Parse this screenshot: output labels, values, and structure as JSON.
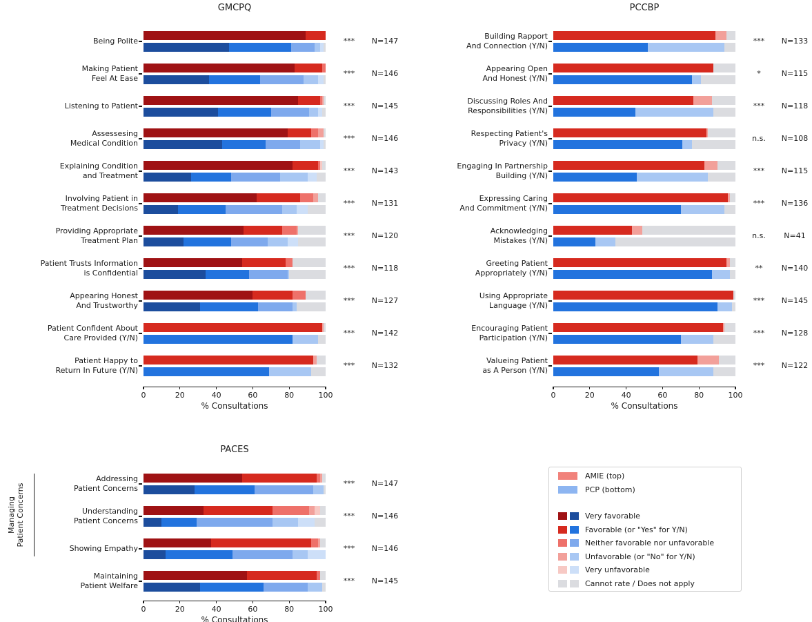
{
  "figure": {
    "xlabel": "% Consultations",
    "group_label_lines": [
      "Managing",
      "Patient Concerns"
    ],
    "segment_colors": {
      "amie": [
        "#9f1214",
        "#d62a1f",
        "#ee716a",
        "#f2a09a",
        "#f7c9c4",
        "#dbdce0"
      ],
      "pcp": [
        "#1c4d9d",
        "#2273de",
        "#7ea9ed",
        "#a8c7f3",
        "#cddff8",
        "#dbdce0"
      ]
    },
    "axis_color": "#1a1a1a"
  },
  "chart_data": [
    {
      "type": "bar",
      "orientation": "horizontal",
      "stacked": true,
      "title": "GMCPQ",
      "xlabel": "% Consultations",
      "xlim": [
        0,
        100
      ],
      "xticks": [
        0,
        20,
        40,
        60,
        80,
        100
      ],
      "series_names": [
        "AMIE (top)",
        "PCP (bottom)"
      ],
      "segment_categories": [
        "Very favorable",
        "Favorable (or \"Yes\" for Y/N)",
        "Neither favorable nor unfavorable",
        "Unfavorable (or \"No\" for Y/N)",
        "Very unfavorable",
        "Cannot rate / Does not apply"
      ],
      "rows": [
        {
          "label": [
            "Being Polite"
          ],
          "sig": "***",
          "n": "N=147",
          "amie": [
            89,
            11,
            0,
            0,
            0,
            0
          ],
          "pcp": [
            47,
            34,
            13,
            3,
            2,
            1
          ]
        },
        {
          "label": [
            "Making Patient",
            "Feel At Ease"
          ],
          "sig": "***",
          "n": "N=146",
          "amie": [
            83,
            15,
            2,
            0,
            0,
            0
          ],
          "pcp": [
            36,
            28,
            24,
            8,
            3,
            1
          ]
        },
        {
          "label": [
            "Listening to Patient"
          ],
          "sig": "***",
          "n": "N=145",
          "amie": [
            85,
            12,
            1,
            1,
            0,
            1
          ],
          "pcp": [
            41,
            29,
            21,
            5,
            2,
            2
          ]
        },
        {
          "label": [
            "Assessesing",
            "Medical Condition"
          ],
          "sig": "***",
          "n": "N=146",
          "amie": [
            79,
            13,
            4,
            3,
            0,
            1
          ],
          "pcp": [
            43,
            24,
            19,
            11,
            2,
            1
          ]
        },
        {
          "label": [
            "Explaining Condition",
            "and Treatment"
          ],
          "sig": "***",
          "n": "N=143",
          "amie": [
            82,
            14,
            1,
            0,
            1,
            2
          ],
          "pcp": [
            26,
            22,
            27,
            15,
            5,
            5
          ]
        },
        {
          "label": [
            "Involving Patient in",
            "Treatment Decisions"
          ],
          "sig": "***",
          "n": "N=131",
          "amie": [
            62,
            24,
            7,
            3,
            0,
            4
          ],
          "pcp": [
            19,
            26,
            31,
            8,
            6,
            10
          ]
        },
        {
          "label": [
            "Providing Appropriate",
            "Treatment Plan"
          ],
          "sig": "***",
          "n": "N=120",
          "amie": [
            55,
            21,
            8,
            1,
            0,
            15
          ],
          "pcp": [
            22,
            26,
            20,
            11,
            6,
            15
          ]
        },
        {
          "label": [
            "Patient Trusts Information",
            "is Confidential"
          ],
          "sig": "***",
          "n": "N=118",
          "amie": [
            54,
            24,
            4,
            0,
            0,
            18
          ],
          "pcp": [
            34,
            24,
            21,
            1,
            0,
            20
          ]
        },
        {
          "label": [
            "Appearing Honest",
            "And Trustworthy"
          ],
          "sig": "***",
          "n": "N=127",
          "amie": [
            60,
            22,
            7,
            0,
            0,
            11
          ],
          "pcp": [
            31,
            32,
            19,
            2,
            0,
            16
          ]
        },
        {
          "label": [
            "Patient Confident About",
            "Care Provided (Y/N)"
          ],
          "sig": "***",
          "n": "N=142",
          "amie": [
            0,
            98,
            0,
            1,
            0,
            1
          ],
          "pcp": [
            0,
            82,
            0,
            14,
            0,
            4
          ]
        },
        {
          "label": [
            "Patient Happy to",
            "Return In Future (Y/N)"
          ],
          "sig": "***",
          "n": "N=132",
          "amie": [
            0,
            93,
            0,
            2,
            0,
            5
          ],
          "pcp": [
            0,
            69,
            0,
            23,
            0,
            8
          ]
        }
      ]
    },
    {
      "type": "bar",
      "orientation": "horizontal",
      "stacked": true,
      "title": "PCCBP",
      "xlabel": "% Consultations",
      "xlim": [
        0,
        100
      ],
      "xticks": [
        0,
        20,
        40,
        60,
        80,
        100
      ],
      "series_names": [
        "AMIE (top)",
        "PCP (bottom)"
      ],
      "segment_categories": [
        "Very favorable",
        "Favorable (or \"Yes\" for Y/N)",
        "Neither favorable nor unfavorable",
        "Unfavorable (or \"No\" for Y/N)",
        "Very unfavorable",
        "Cannot rate / Does not apply"
      ],
      "rows": [
        {
          "label": [
            "Building Rapport",
            "And Connection (Y/N)"
          ],
          "sig": "***",
          "n": "N=133",
          "amie": [
            0,
            89,
            0,
            6,
            0,
            5
          ],
          "pcp": [
            0,
            52,
            0,
            42,
            0,
            6
          ]
        },
        {
          "label": [
            "Appearing Open",
            "And Honest (Y/N)"
          ],
          "sig": "*",
          "n": "N=115",
          "amie": [
            0,
            88,
            0,
            0,
            0,
            12
          ],
          "pcp": [
            0,
            76,
            0,
            5,
            0,
            19
          ]
        },
        {
          "label": [
            "Discussing Roles And",
            "Responsibilities (Y/N)"
          ],
          "sig": "***",
          "n": "N=118",
          "amie": [
            0,
            77,
            0,
            10,
            0,
            13
          ],
          "pcp": [
            0,
            45,
            0,
            43,
            0,
            12
          ]
        },
        {
          "label": [
            "Respecting Patient's",
            "Privacy (Y/N)"
          ],
          "sig": "n.s.",
          "n": "N=108",
          "amie": [
            0,
            84,
            0,
            1,
            0,
            15
          ],
          "pcp": [
            0,
            71,
            0,
            5,
            0,
            24
          ]
        },
        {
          "label": [
            "Engaging In Partnership",
            "Building (Y/N)"
          ],
          "sig": "***",
          "n": "N=115",
          "amie": [
            0,
            83,
            0,
            7,
            0,
            10
          ],
          "pcp": [
            0,
            46,
            0,
            39,
            0,
            15
          ]
        },
        {
          "label": [
            "Expressing Caring",
            "And Commitment (Y/N)"
          ],
          "sig": "***",
          "n": "N=136",
          "amie": [
            0,
            96,
            0,
            1,
            0,
            3
          ],
          "pcp": [
            0,
            70,
            0,
            24,
            0,
            6
          ]
        },
        {
          "label": [
            "Acknowledging",
            "Mistakes (Y/N)"
          ],
          "sig": "n.s.",
          "n": "N=41",
          "amie": [
            0,
            43,
            0,
            6,
            0,
            51
          ],
          "pcp": [
            0,
            23,
            0,
            11,
            0,
            66
          ]
        },
        {
          "label": [
            "Greeting Patient",
            "Appropriately (Y/N)"
          ],
          "sig": "**",
          "n": "N=140",
          "amie": [
            0,
            95,
            0,
            2,
            0,
            3
          ],
          "pcp": [
            0,
            87,
            0,
            10,
            0,
            3
          ]
        },
        {
          "label": [
            "Using Appropriate",
            "Language (Y/N)"
          ],
          "sig": "***",
          "n": "N=145",
          "amie": [
            0,
            99,
            0,
            0,
            0,
            1
          ],
          "pcp": [
            0,
            90,
            0,
            8,
            0,
            2
          ]
        },
        {
          "label": [
            "Encouraging Patient",
            "Participation (Y/N)"
          ],
          "sig": "***",
          "n": "N=128",
          "amie": [
            0,
            93,
            0,
            1,
            0,
            6
          ],
          "pcp": [
            0,
            70,
            0,
            18,
            0,
            12
          ]
        },
        {
          "label": [
            "Valueing Patient",
            "as A Person (Y/N)"
          ],
          "sig": "***",
          "n": "N=122",
          "amie": [
            0,
            79,
            0,
            12,
            0,
            9
          ],
          "pcp": [
            0,
            58,
            0,
            30,
            0,
            12
          ]
        }
      ]
    },
    {
      "type": "bar",
      "orientation": "horizontal",
      "stacked": true,
      "title": "PACES",
      "xlabel": "% Consultations",
      "xlim": [
        0,
        100
      ],
      "xticks": [
        0,
        20,
        40,
        60,
        80,
        100
      ],
      "series_names": [
        "AMIE (top)",
        "PCP (bottom)"
      ],
      "segment_categories": [
        "Very favorable",
        "Favorable (or \"Yes\" for Y/N)",
        "Neither favorable nor unfavorable",
        "Unfavorable (or \"No\" for Y/N)",
        "Very unfavorable",
        "Cannot rate / Does not apply"
      ],
      "group_bracket": {
        "label_lines": [
          "Managing",
          "Patient Concerns"
        ],
        "row_span": [
          0,
          2
        ]
      },
      "rows": [
        {
          "label": [
            "Addressing",
            "Patient Concerns"
          ],
          "sig": "***",
          "n": "N=147",
          "amie": [
            54,
            41,
            2,
            1,
            0,
            2
          ],
          "pcp": [
            28,
            33,
            32,
            6,
            0,
            1
          ]
        },
        {
          "label": [
            "Understanding",
            "Patient Concerns"
          ],
          "sig": "***",
          "n": "N=146",
          "amie": [
            33,
            38,
            20,
            3,
            3,
            3
          ],
          "pcp": [
            10,
            19,
            42,
            14,
            9,
            6
          ]
        },
        {
          "label": [
            "Showing Empathy"
          ],
          "sig": "***",
          "n": "N=146",
          "amie": [
            37,
            55,
            4,
            1,
            0,
            3
          ],
          "pcp": [
            12,
            37,
            33,
            8,
            10,
            0
          ]
        },
        {
          "label": [
            "Maintaining",
            "Patient Welfare"
          ],
          "sig": "***",
          "n": "N=145",
          "amie": [
            57,
            38,
            2,
            0,
            0,
            3
          ],
          "pcp": [
            31,
            35,
            24,
            8,
            0,
            2
          ]
        }
      ]
    }
  ],
  "legend": {
    "series": [
      {
        "label": "AMIE (top)",
        "color": "#f1827b"
      },
      {
        "label": "PCP (bottom)",
        "color": "#8db5f1"
      }
    ],
    "categories": [
      {
        "label": "Very favorable"
      },
      {
        "label": "Favorable (or \"Yes\" for Y/N)"
      },
      {
        "label": "Neither favorable nor unfavorable"
      },
      {
        "label": "Unfavorable (or \"No\" for Y/N)"
      },
      {
        "label": "Very unfavorable"
      },
      {
        "label": "Cannot rate / Does not apply"
      }
    ]
  }
}
